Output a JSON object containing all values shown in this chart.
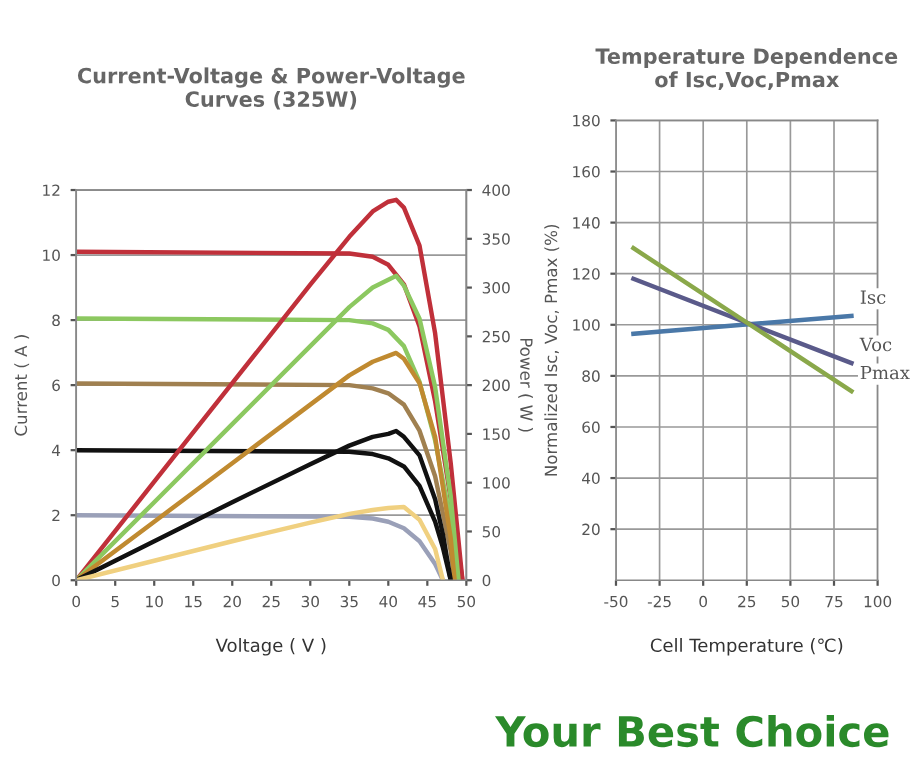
{
  "chart_data": [
    {
      "type": "line",
      "title": "Current-Voltage & Power-Voltage\nCurves (325W)",
      "xlabel": "Voltage ( V )",
      "ylabel": "Current ( A )",
      "y2label": "Power ( W )",
      "xlim": [
        0,
        50
      ],
      "xticks": [
        0,
        5,
        10,
        15,
        20,
        25,
        30,
        35,
        40,
        45,
        50
      ],
      "ylim": [
        0,
        12
      ],
      "yticks": [
        0,
        2,
        4,
        6,
        8,
        10,
        12
      ],
      "y2lim": [
        0,
        400
      ],
      "y2ticks": [
        0,
        50,
        100,
        150,
        200,
        250,
        300,
        350,
        400
      ],
      "grid": "y",
      "legend": false,
      "series": [
        {
          "color": "#c0303a",
          "x": [
            0,
            35,
            38,
            40,
            42,
            44,
            46,
            48,
            49.5
          ],
          "values": [
            10.1,
            10.05,
            9.95,
            9.7,
            9.1,
            7.8,
            5.5,
            2.5,
            0
          ]
        },
        {
          "color": "#8cc860",
          "x": [
            0,
            35,
            38,
            40,
            42,
            44,
            46,
            48,
            49
          ],
          "values": [
            8.05,
            8.0,
            7.9,
            7.7,
            7.2,
            6.1,
            4.3,
            1.8,
            0
          ]
        },
        {
          "color": "#a08050",
          "x": [
            0,
            35,
            38,
            40,
            42,
            44,
            46,
            48,
            48.5
          ],
          "values": [
            6.05,
            6.0,
            5.9,
            5.75,
            5.4,
            4.6,
            3.2,
            0.9,
            0
          ]
        },
        {
          "color": "#111111",
          "x": [
            0,
            35,
            38,
            40,
            42,
            44,
            46,
            47,
            48
          ],
          "values": [
            4.0,
            3.95,
            3.88,
            3.75,
            3.5,
            2.9,
            1.8,
            1.0,
            0
          ]
        },
        {
          "color": "#9aa0b8",
          "x": [
            0,
            35,
            38,
            40,
            42,
            44,
            46,
            47
          ],
          "values": [
            2.0,
            1.95,
            1.9,
            1.8,
            1.6,
            1.2,
            0.5,
            0
          ]
        },
        {
          "color": "#c0303a",
          "axis": "y2",
          "x": [
            0,
            10,
            20,
            30,
            35,
            38,
            40,
            41,
            42,
            44,
            46,
            48,
            49.5
          ],
          "values": [
            0,
            101,
            202,
            303,
            352,
            378,
            388,
            390,
            382,
            343,
            253,
            120,
            0
          ]
        },
        {
          "color": "#8cc860",
          "axis": "y2",
          "x": [
            0,
            10,
            20,
            30,
            35,
            38,
            40,
            41,
            42,
            44,
            46,
            48,
            49
          ],
          "values": [
            0,
            80,
            160,
            240,
            280,
            300,
            308,
            312,
            302,
            268,
            198,
            86,
            0
          ]
        },
        {
          "color": "#c08a30",
          "axis": "y2",
          "x": [
            0,
            10,
            20,
            30,
            35,
            38,
            40,
            41,
            42,
            44,
            46,
            48,
            48.5
          ],
          "values": [
            0,
            60,
            120,
            180,
            210,
            224,
            230,
            233,
            227,
            202,
            147,
            43,
            0
          ]
        },
        {
          "color": "#111111",
          "axis": "y2",
          "x": [
            0,
            10,
            20,
            30,
            35,
            38,
            40,
            41,
            42,
            44,
            46,
            47,
            48
          ],
          "values": [
            0,
            40,
            80,
            119,
            138,
            147,
            150,
            153,
            147,
            128,
            83,
            47,
            0
          ]
        },
        {
          "color": "#f0d080",
          "axis": "y2",
          "x": [
            0,
            10,
            20,
            30,
            35,
            38,
            40,
            42,
            44,
            46,
            47
          ],
          "values": [
            0,
            20,
            40,
            59,
            68,
            72,
            74,
            75,
            62,
            32,
            0
          ]
        }
      ]
    },
    {
      "type": "line",
      "title": "Temperature Dependence\nof Isc,Voc,Pmax",
      "xlabel": "Cell Temperature (℃)",
      "ylabel": "Normalized Isc, Voc, Pmax (%)",
      "xlim": [
        -50,
        100
      ],
      "xticks": [
        -50,
        -25,
        0,
        25,
        50,
        75,
        100
      ],
      "ylim": [
        0,
        180
      ],
      "yticks": [
        20,
        40,
        60,
        80,
        100,
        120,
        140,
        160,
        180
      ],
      "grid": true,
      "legend": false,
      "annotations": [
        "Your Best Choice"
      ],
      "series": [
        {
          "name": "Isc",
          "color": "#4a78a8",
          "x": [
            -40,
            85
          ],
          "values": [
            96.5,
            103.5
          ]
        },
        {
          "name": "Voc",
          "color": "#5a5a8a",
          "x": [
            -40,
            85
          ],
          "values": [
            118,
            85
          ]
        },
        {
          "name": "Pmax",
          "color": "#8aa84a",
          "x": [
            -40,
            85
          ],
          "values": [
            130,
            74
          ]
        }
      ]
    }
  ]
}
